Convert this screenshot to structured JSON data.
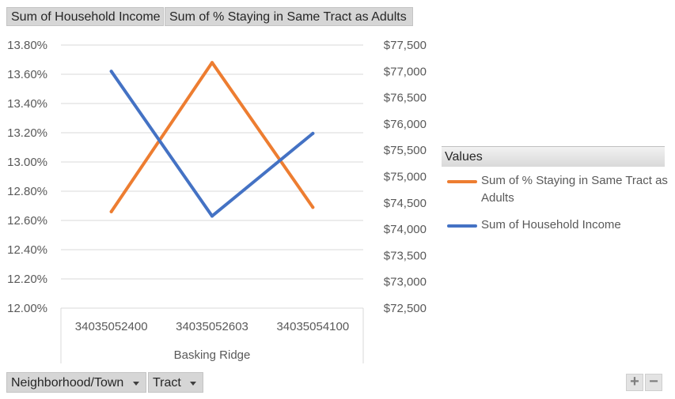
{
  "field_buttons": {
    "values": [
      "Sum of Household Income",
      "Sum of % Staying in Same Tract as Adults"
    ],
    "axis": [
      "Neighborhood/Town",
      "Tract"
    ]
  },
  "legend": {
    "title": "Values",
    "position": "right",
    "items": [
      {
        "label": "Sum of % Staying in Same Tract as Adults",
        "color": "#ed7d31"
      },
      {
        "label": "Sum of Household Income",
        "color": "#4472c4"
      }
    ]
  },
  "zoom": {
    "plus": "+",
    "minus": "−"
  },
  "chart_data": {
    "type": "line",
    "categories": [
      "34035052400",
      "34035052603",
      "34035054100"
    ],
    "group_label": "Basking Ridge",
    "grid": true,
    "y_left": {
      "ylim": [
        0.12,
        0.138
      ],
      "ticks": [
        "13.80%",
        "13.60%",
        "13.40%",
        "13.20%",
        "13.00%",
        "12.80%",
        "12.60%",
        "12.40%",
        "12.20%",
        "12.00%"
      ]
    },
    "y_right": {
      "ylim": [
        72500,
        77500
      ],
      "ticks": [
        "$77,500",
        "$77,000",
        "$76,500",
        "$76,000",
        "$75,500",
        "$75,000",
        "$74,500",
        "$74,000",
        "$73,500",
        "$73,000",
        "$72,500"
      ]
    },
    "series": [
      {
        "name": "Sum of % Staying in Same Tract as Adults",
        "axis": "left",
        "color": "#ed7d31",
        "values": [
          0.1266,
          0.1368,
          0.1269
        ]
      },
      {
        "name": "Sum of Household Income",
        "axis": "right",
        "color": "#4472c4",
        "values": [
          77000,
          74250,
          75820
        ]
      }
    ]
  }
}
